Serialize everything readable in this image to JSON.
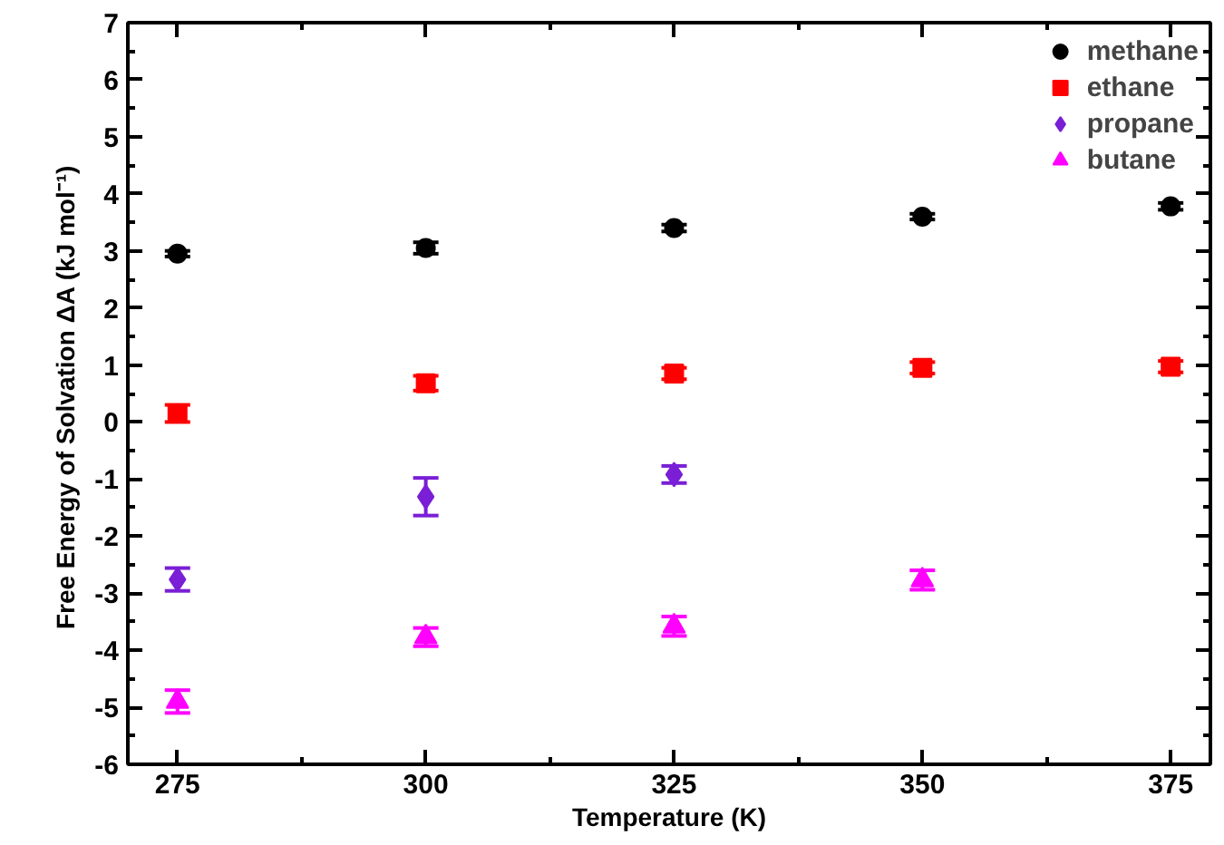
{
  "chart_data": {
    "type": "scatter",
    "xlabel": "Temperature (K)",
    "ylabel": "Free Energy of Solvation  ΔA (kJ mol⁻¹)",
    "xlim": [
      270,
      379
    ],
    "ylim": [
      -6,
      7
    ],
    "xticks": [
      275,
      {
        "value": 287.5,
        "label": null
      },
      300,
      {
        "value": 312.5,
        "label": null
      },
      325,
      {
        "value": 337.5,
        "label": null
      },
      350,
      {
        "value": 362.5,
        "label": null
      },
      375
    ],
    "yticks": [
      -6,
      {
        "value": -5.5,
        "label": null
      },
      -5,
      {
        "value": -4.5,
        "label": null
      },
      -4,
      {
        "value": -3.5,
        "label": null
      },
      -3,
      {
        "value": -2.5,
        "label": null
      },
      -2,
      {
        "value": -1.5,
        "label": null
      },
      -1,
      {
        "value": -0.5,
        "label": null
      },
      0,
      {
        "value": 0.5,
        "label": null
      },
      1,
      {
        "value": 1.5,
        "label": null
      },
      2,
      {
        "value": 2.5,
        "label": null
      },
      3,
      {
        "value": 3.5,
        "label": null
      },
      4,
      {
        "value": 4.5,
        "label": null
      },
      5,
      {
        "value": 5.5,
        "label": null
      },
      6,
      {
        "value": 6.5,
        "label": null
      },
      7
    ],
    "grid": false,
    "legend": "top right",
    "series": [
      {
        "name": "methane",
        "color": "#000000",
        "marker": "circle",
        "x": [
          275,
          300,
          325,
          350,
          375
        ],
        "values": [
          2.95,
          3.05,
          3.4,
          3.6,
          3.78
        ],
        "errors": [
          0.05,
          0.1,
          0.06,
          0.05,
          0.06
        ]
      },
      {
        "name": "ethane",
        "color": "#ff0000",
        "marker": "square",
        "x": [
          275,
          300,
          325,
          350,
          375
        ],
        "values": [
          0.15,
          0.68,
          0.85,
          0.95,
          0.97
        ],
        "errors": [
          0.15,
          0.13,
          0.1,
          0.1,
          0.1
        ]
      },
      {
        "name": "propane",
        "color": "#7a1fd6",
        "marker": "diamond",
        "x": [
          275,
          300,
          325
        ],
        "values": [
          -2.76,
          -1.31,
          -0.92
        ],
        "errors": [
          0.2,
          0.33,
          0.15
        ]
      },
      {
        "name": "butane",
        "color": "#ff00ff",
        "marker": "triangle",
        "x": [
          275,
          300,
          325,
          350
        ],
        "values": [
          -4.9,
          -3.77,
          -3.58,
          -2.77
        ],
        "errors": [
          0.2,
          0.16,
          0.17,
          0.17
        ]
      }
    ]
  }
}
